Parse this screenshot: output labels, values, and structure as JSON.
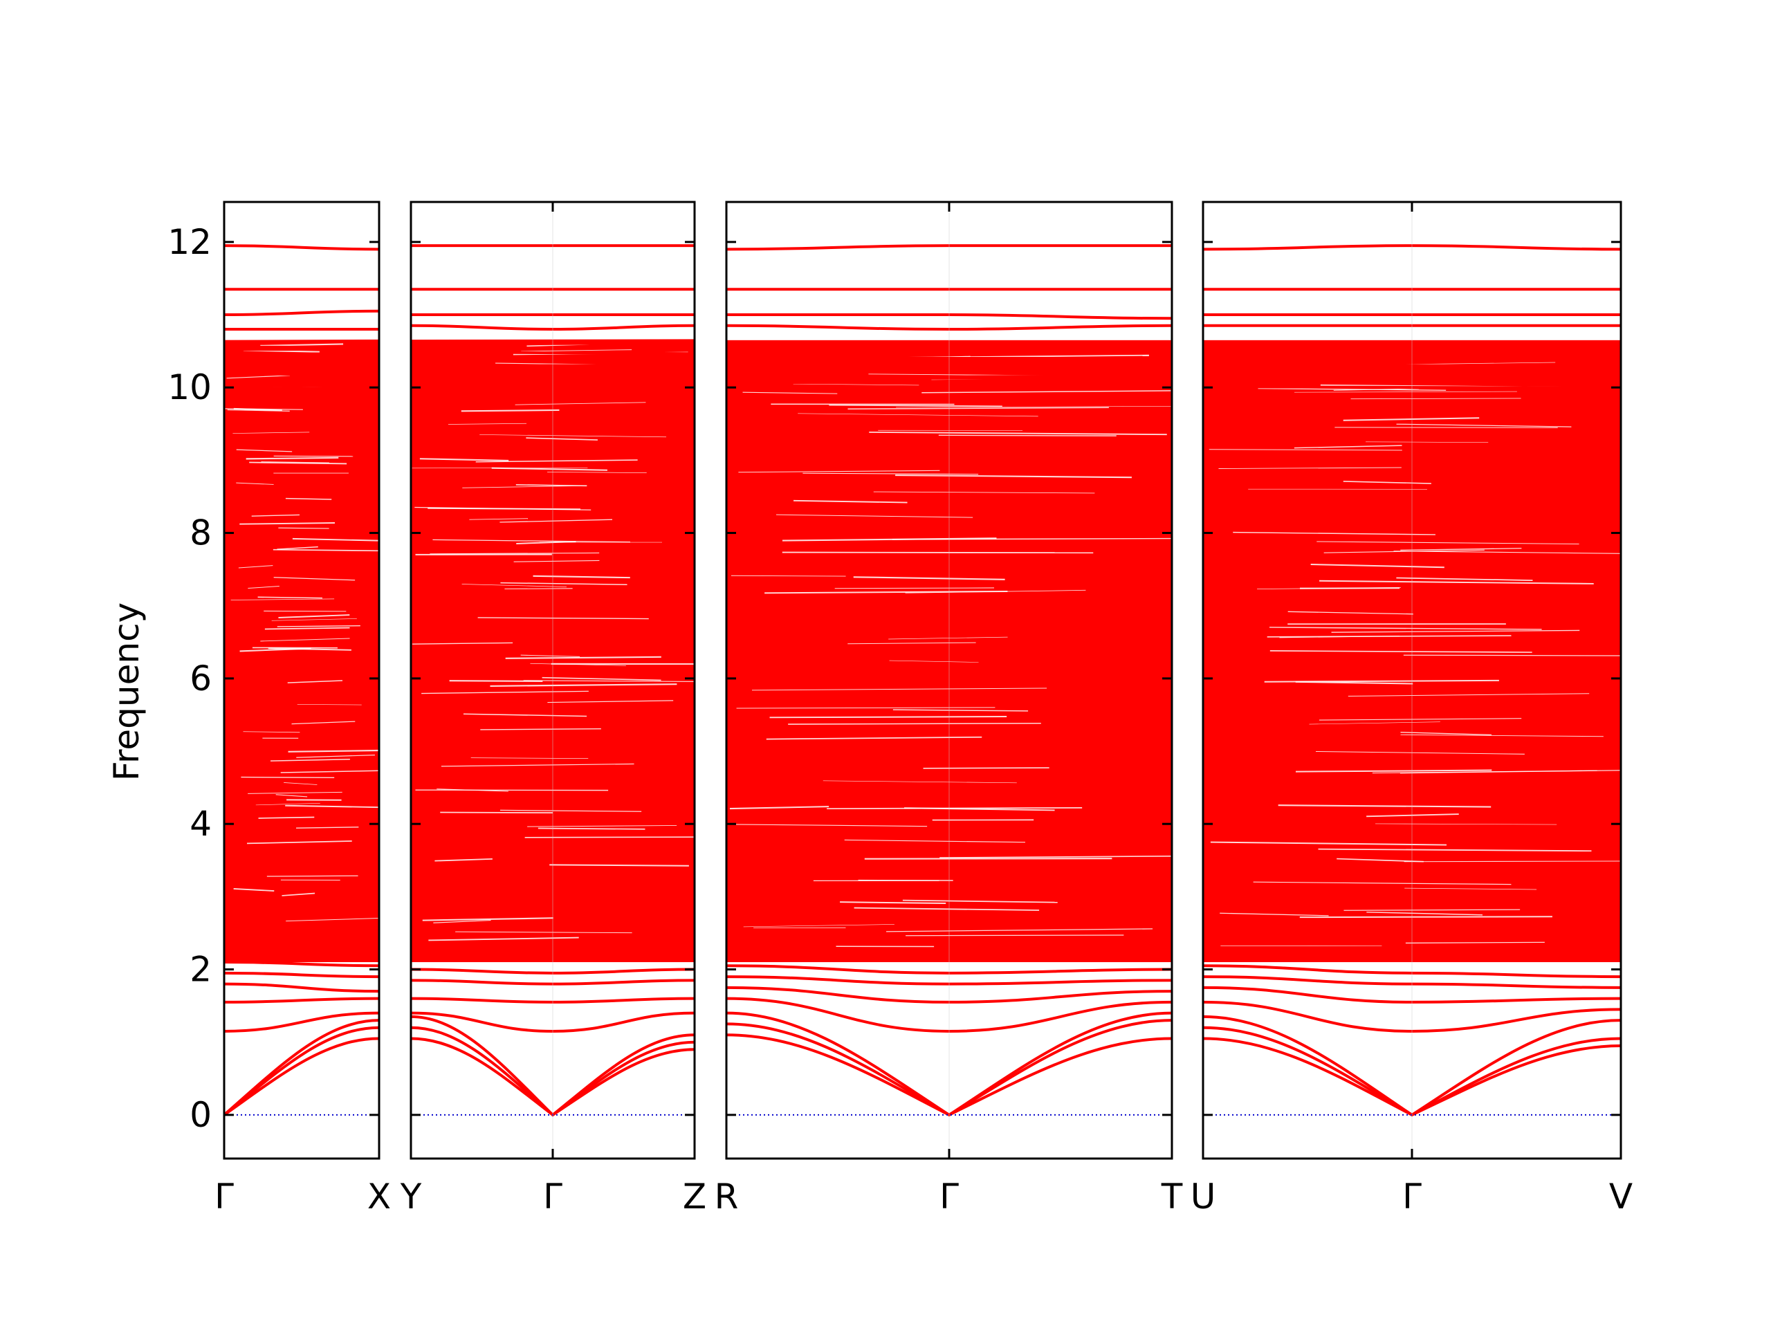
{
  "chart_data": {
    "type": "line",
    "ylabel": "Frequency",
    "xlabel": "",
    "ylim": [
      -0.6,
      12.55
    ],
    "yticks": [
      0,
      2,
      4,
      6,
      8,
      10,
      12
    ],
    "ytick_labels": [
      "0",
      "2",
      "4",
      "6",
      "8",
      "10",
      "12"
    ],
    "grid": false,
    "colors": {
      "bands": "#ff0000",
      "zero_line": "#0000cc",
      "frame": "#000000"
    },
    "panels": [
      {
        "segment_labels": [
          "Γ",
          "X"
        ],
        "series": [
          {
            "x": [
              0,
              1
            ],
            "y": [
              0.0,
              1.05
            ]
          },
          {
            "x": [
              0,
              1
            ],
            "y": [
              0.0,
              1.2
            ]
          },
          {
            "x": [
              0,
              1
            ],
            "y": [
              0.0,
              1.3
            ]
          },
          {
            "x": [
              0,
              1
            ],
            "y": [
              1.15,
              1.4
            ]
          },
          {
            "x": [
              0,
              1
            ],
            "y": [
              1.55,
              1.6
            ]
          },
          {
            "x": [
              0,
              1
            ],
            "y": [
              1.8,
              1.7
            ]
          },
          {
            "x": [
              0,
              1
            ],
            "y": [
              1.95,
              1.9
            ]
          },
          {
            "x": [
              0,
              1
            ],
            "y": [
              2.1,
              2.05
            ]
          },
          {
            "x": [
              0,
              1
            ],
            "y": [
              11.95,
              11.9
            ]
          },
          {
            "x": [
              0,
              1
            ],
            "y": [
              11.35,
              11.35
            ]
          },
          {
            "x": [
              0,
              1
            ],
            "y": [
              11.0,
              11.05
            ]
          },
          {
            "x": [
              0,
              1
            ],
            "y": [
              10.8,
              10.8
            ]
          }
        ]
      },
      {
        "segment_labels": [
          "Y",
          "Γ",
          "Z"
        ],
        "series": [
          {
            "x": [
              0,
              1,
              2
            ],
            "y": [
              1.05,
              0.0,
              0.9
            ]
          },
          {
            "x": [
              0,
              1,
              2
            ],
            "y": [
              1.2,
              0.0,
              1.0
            ]
          },
          {
            "x": [
              0,
              1,
              2
            ],
            "y": [
              1.35,
              0.0,
              1.1
            ]
          },
          {
            "x": [
              0,
              1,
              2
            ],
            "y": [
              1.4,
              1.15,
              1.4
            ]
          },
          {
            "x": [
              0,
              1,
              2
            ],
            "y": [
              1.6,
              1.55,
              1.6
            ]
          },
          {
            "x": [
              0,
              1,
              2
            ],
            "y": [
              1.85,
              1.8,
              1.85
            ]
          },
          {
            "x": [
              0,
              1,
              2
            ],
            "y": [
              2.0,
              1.95,
              2.0
            ]
          },
          {
            "x": [
              0,
              1,
              2
            ],
            "y": [
              11.95,
              11.95,
              11.95
            ]
          },
          {
            "x": [
              0,
              1,
              2
            ],
            "y": [
              11.35,
              11.35,
              11.35
            ]
          },
          {
            "x": [
              0,
              1,
              2
            ],
            "y": [
              11.0,
              11.0,
              11.0
            ]
          },
          {
            "x": [
              0,
              1,
              2
            ],
            "y": [
              10.85,
              10.8,
              10.85
            ]
          }
        ]
      },
      {
        "segment_labels": [
          "R",
          "Γ",
          "T"
        ],
        "series": [
          {
            "x": [
              0,
              1,
              2
            ],
            "y": [
              1.1,
              0.0,
              1.05
            ]
          },
          {
            "x": [
              0,
              1,
              2
            ],
            "y": [
              1.25,
              0.0,
              1.3
            ]
          },
          {
            "x": [
              0,
              1,
              2
            ],
            "y": [
              1.4,
              0.0,
              1.4
            ]
          },
          {
            "x": [
              0,
              1,
              2
            ],
            "y": [
              1.6,
              1.15,
              1.55
            ]
          },
          {
            "x": [
              0,
              1,
              2
            ],
            "y": [
              1.75,
              1.55,
              1.7
            ]
          },
          {
            "x": [
              0,
              1,
              2
            ],
            "y": [
              1.9,
              1.8,
              1.85
            ]
          },
          {
            "x": [
              0,
              1,
              2
            ],
            "y": [
              2.05,
              1.95,
              2.0
            ]
          },
          {
            "x": [
              0,
              1,
              2
            ],
            "y": [
              11.9,
              11.95,
              11.95
            ]
          },
          {
            "x": [
              0,
              1,
              2
            ],
            "y": [
              11.35,
              11.35,
              11.35
            ]
          },
          {
            "x": [
              0,
              1,
              2
            ],
            "y": [
              11.0,
              11.0,
              10.95
            ]
          },
          {
            "x": [
              0,
              1,
              2
            ],
            "y": [
              10.85,
              10.8,
              10.85
            ]
          }
        ]
      },
      {
        "segment_labels": [
          "U",
          "Γ",
          "V"
        ],
        "series": [
          {
            "x": [
              0,
              1,
              2
            ],
            "y": [
              1.05,
              0.0,
              0.95
            ]
          },
          {
            "x": [
              0,
              1,
              2
            ],
            "y": [
              1.2,
              0.0,
              1.05
            ]
          },
          {
            "x": [
              0,
              1,
              2
            ],
            "y": [
              1.35,
              0.0,
              1.3
            ]
          },
          {
            "x": [
              0,
              1,
              2
            ],
            "y": [
              1.55,
              1.15,
              1.45
            ]
          },
          {
            "x": [
              0,
              1,
              2
            ],
            "y": [
              1.75,
              1.55,
              1.6
            ]
          },
          {
            "x": [
              0,
              1,
              2
            ],
            "y": [
              1.9,
              1.8,
              1.75
            ]
          },
          {
            "x": [
              0,
              1,
              2
            ],
            "y": [
              2.05,
              1.95,
              1.9
            ]
          },
          {
            "x": [
              0,
              1,
              2
            ],
            "y": [
              11.9,
              11.95,
              11.9
            ]
          },
          {
            "x": [
              0,
              1,
              2
            ],
            "y": [
              11.35,
              11.35,
              11.35
            ]
          },
          {
            "x": [
              0,
              1,
              2
            ],
            "y": [
              11.0,
              11.0,
              11.0
            ]
          },
          {
            "x": [
              0,
              1,
              2
            ],
            "y": [
              10.85,
              10.85,
              10.85
            ]
          }
        ]
      }
    ],
    "dense_band": {
      "description_values_range": [
        2.1,
        10.65
      ],
      "approx_band_count": 240
    }
  }
}
